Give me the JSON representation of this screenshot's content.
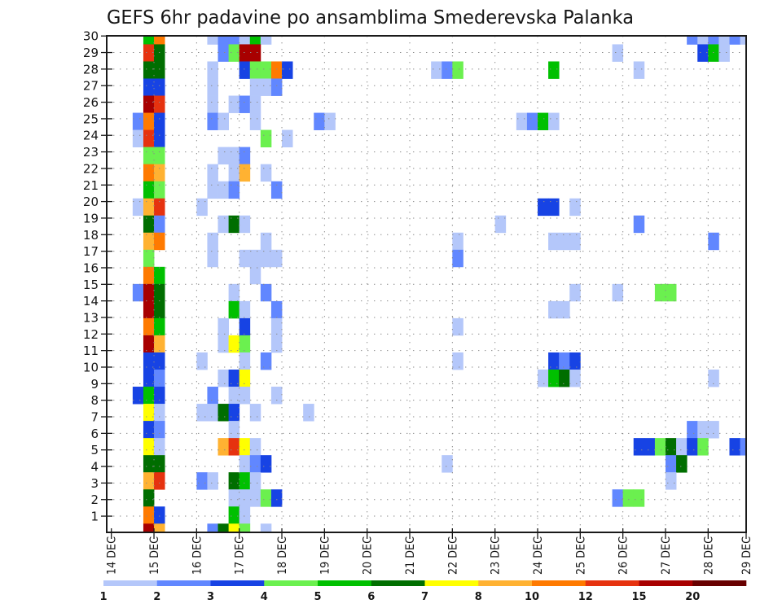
{
  "chart_data": {
    "type": "heatmap",
    "title": "GEFS 6hr padavine po ansamblima Smederevska Palanka",
    "xlabel": "",
    "ylabel": "",
    "ylim": [
      0,
      30
    ],
    "step_hours": 6,
    "x_ticks": [
      "14 DEC",
      "15 DEC",
      "16 DEC",
      "17 DEC",
      "18 DEC",
      "19 DEC",
      "20 DEC",
      "21 DEC",
      "22 DEC",
      "23 DEC",
      "24 DEC",
      "25 DEC",
      "26 DEC",
      "27 DEC",
      "28 DEC",
      "29 DEC"
    ],
    "y_ticks": [
      "1",
      "2",
      "3",
      "4",
      "5",
      "6",
      "7",
      "8",
      "9",
      "10",
      "11",
      "12",
      "13",
      "14",
      "15",
      "16",
      "17",
      "18",
      "19",
      "20",
      "21",
      "22",
      "23",
      "24",
      "25",
      "26",
      "27",
      "28",
      "29",
      "30"
    ],
    "grid": true,
    "legend": "bottom",
    "levels": [
      1,
      2,
      3,
      4,
      5,
      6,
      7,
      8,
      10,
      12,
      15,
      20
    ],
    "level_labels": [
      "1",
      "2",
      "3",
      "4",
      "5",
      "6",
      "7",
      "8",
      "10",
      "12",
      "15",
      "20"
    ],
    "colors": [
      "#b4c7fa",
      "#6187ff",
      "#1743e4",
      "#6bf04f",
      "#00c000",
      "#006e00",
      "#ffff00",
      "#ffb232",
      "#ff7a00",
      "#e6320f",
      "#a80000",
      "#680000"
    ],
    "rows": [
      {
        "member": 30,
        "cells": [
          [
            3,
            5
          ],
          [
            4,
            10
          ],
          [
            9,
            1
          ],
          [
            10,
            2
          ],
          [
            11,
            2
          ],
          [
            12,
            1
          ],
          [
            13,
            5
          ],
          [
            14,
            1
          ],
          [
            54,
            2
          ],
          [
            55,
            1
          ],
          [
            56,
            2
          ],
          [
            57,
            1
          ],
          [
            58,
            2
          ],
          [
            59,
            1
          ]
        ]
      },
      {
        "member": 29,
        "cells": [
          [
            3,
            12
          ],
          [
            4,
            6
          ],
          [
            10,
            2
          ],
          [
            11,
            4
          ],
          [
            12,
            15
          ],
          [
            13,
            15
          ],
          [
            47,
            1
          ],
          [
            55,
            3
          ],
          [
            56,
            5
          ],
          [
            57,
            1
          ]
        ]
      },
      {
        "member": 28,
        "cells": [
          [
            3,
            6
          ],
          [
            4,
            6
          ],
          [
            9,
            1
          ],
          [
            12,
            3
          ],
          [
            13,
            4
          ],
          [
            14,
            4
          ],
          [
            15,
            10
          ],
          [
            16,
            3
          ],
          [
            30,
            1
          ],
          [
            31,
            2
          ],
          [
            32,
            4
          ],
          [
            41,
            5
          ],
          [
            49,
            1
          ]
        ]
      },
      {
        "member": 27,
        "cells": [
          [
            3,
            3
          ],
          [
            4,
            3
          ],
          [
            9,
            1
          ],
          [
            13,
            1
          ],
          [
            14,
            1
          ],
          [
            15,
            2
          ]
        ]
      },
      {
        "member": 26,
        "cells": [
          [
            3,
            15
          ],
          [
            4,
            12
          ],
          [
            9,
            1
          ],
          [
            11,
            1
          ],
          [
            12,
            2
          ],
          [
            13,
            1
          ]
        ]
      },
      {
        "member": 25,
        "cells": [
          [
            2,
            2
          ],
          [
            3,
            10
          ],
          [
            4,
            3
          ],
          [
            9,
            2
          ],
          [
            10,
            1
          ],
          [
            13,
            1
          ],
          [
            19,
            2
          ],
          [
            20,
            1
          ],
          [
            38,
            1
          ],
          [
            39,
            2
          ],
          [
            40,
            5
          ],
          [
            41,
            1
          ]
        ]
      },
      {
        "member": 24,
        "cells": [
          [
            2,
            1
          ],
          [
            3,
            12
          ],
          [
            4,
            3
          ],
          [
            14,
            4
          ],
          [
            16,
            1
          ]
        ]
      },
      {
        "member": 23,
        "cells": [
          [
            3,
            4
          ],
          [
            4,
            4
          ],
          [
            10,
            1
          ],
          [
            11,
            1
          ],
          [
            12,
            2
          ]
        ]
      },
      {
        "member": 22,
        "cells": [
          [
            3,
            10
          ],
          [
            4,
            8
          ],
          [
            9,
            1
          ],
          [
            11,
            1
          ],
          [
            12,
            8
          ],
          [
            14,
            1
          ]
        ]
      },
      {
        "member": 21,
        "cells": [
          [
            3,
            5
          ],
          [
            4,
            4
          ],
          [
            9,
            1
          ],
          [
            10,
            1
          ],
          [
            11,
            2
          ],
          [
            15,
            2
          ]
        ]
      },
      {
        "member": 20,
        "cells": [
          [
            2,
            1
          ],
          [
            3,
            8
          ],
          [
            4,
            12
          ],
          [
            8,
            1
          ],
          [
            40,
            3
          ],
          [
            41,
            3
          ],
          [
            43,
            1
          ]
        ]
      },
      {
        "member": 19,
        "cells": [
          [
            3,
            6
          ],
          [
            4,
            2
          ],
          [
            10,
            1
          ],
          [
            11,
            6
          ],
          [
            12,
            1
          ],
          [
            36,
            1
          ],
          [
            49,
            2
          ]
        ]
      },
      {
        "member": 18,
        "cells": [
          [
            3,
            8
          ],
          [
            4,
            10
          ],
          [
            9,
            1
          ],
          [
            14,
            1
          ],
          [
            32,
            1
          ],
          [
            41,
            1
          ],
          [
            42,
            1
          ],
          [
            43,
            1
          ],
          [
            56,
            2
          ]
        ]
      },
      {
        "member": 17,
        "cells": [
          [
            3,
            4
          ],
          [
            9,
            1
          ],
          [
            12,
            1
          ],
          [
            13,
            1
          ],
          [
            14,
            1
          ],
          [
            15,
            1
          ],
          [
            32,
            2
          ]
        ]
      },
      {
        "member": 16,
        "cells": [
          [
            3,
            10
          ],
          [
            4,
            5
          ],
          [
            13,
            1
          ]
        ]
      },
      {
        "member": 15,
        "cells": [
          [
            2,
            2
          ],
          [
            3,
            15
          ],
          [
            4,
            6
          ],
          [
            11,
            1
          ],
          [
            14,
            2
          ],
          [
            43,
            1
          ],
          [
            47,
            1
          ],
          [
            51,
            4
          ],
          [
            52,
            4
          ]
        ]
      },
      {
        "member": 14,
        "cells": [
          [
            3,
            15
          ],
          [
            4,
            6
          ],
          [
            11,
            5
          ],
          [
            12,
            1
          ],
          [
            15,
            2
          ],
          [
            41,
            1
          ],
          [
            42,
            1
          ]
        ]
      },
      {
        "member": 13,
        "cells": [
          [
            3,
            10
          ],
          [
            4,
            5
          ],
          [
            10,
            1
          ],
          [
            12,
            3
          ],
          [
            15,
            1
          ],
          [
            32,
            1
          ]
        ]
      },
      {
        "member": 12,
        "cells": [
          [
            3,
            15
          ],
          [
            4,
            8
          ],
          [
            10,
            1
          ],
          [
            11,
            7
          ],
          [
            12,
            4
          ],
          [
            15,
            1
          ]
        ]
      },
      {
        "member": 11,
        "cells": [
          [
            3,
            3
          ],
          [
            4,
            3
          ],
          [
            8,
            1
          ],
          [
            12,
            1
          ],
          [
            14,
            2
          ],
          [
            32,
            1
          ],
          [
            41,
            3
          ],
          [
            42,
            2
          ],
          [
            43,
            3
          ]
        ]
      },
      {
        "member": 10,
        "cells": [
          [
            3,
            3
          ],
          [
            4,
            2
          ],
          [
            10,
            1
          ],
          [
            11,
            3
          ],
          [
            12,
            7
          ],
          [
            40,
            1
          ],
          [
            41,
            5
          ],
          [
            42,
            6
          ],
          [
            43,
            1
          ],
          [
            56,
            1
          ]
        ]
      },
      {
        "member": 9,
        "cells": [
          [
            2,
            3
          ],
          [
            3,
            5
          ],
          [
            4,
            3
          ],
          [
            9,
            2
          ],
          [
            11,
            1
          ],
          [
            12,
            1
          ],
          [
            15,
            1
          ]
        ]
      },
      {
        "member": 8,
        "cells": [
          [
            3,
            7
          ],
          [
            4,
            1
          ],
          [
            8,
            1
          ],
          [
            9,
            1
          ],
          [
            10,
            6
          ],
          [
            11,
            3
          ],
          [
            13,
            1
          ],
          [
            18,
            1
          ]
        ]
      },
      {
        "member": 7,
        "cells": [
          [
            3,
            3
          ],
          [
            4,
            2
          ],
          [
            11,
            1
          ],
          [
            54,
            2
          ],
          [
            55,
            1
          ],
          [
            56,
            1
          ]
        ]
      },
      {
        "member": 6,
        "cells": [
          [
            3,
            7
          ],
          [
            4,
            1
          ],
          [
            10,
            8
          ],
          [
            11,
            12
          ],
          [
            12,
            7
          ],
          [
            13,
            1
          ],
          [
            49,
            3
          ],
          [
            50,
            3
          ],
          [
            51,
            4
          ],
          [
            52,
            6
          ],
          [
            53,
            1
          ],
          [
            54,
            3
          ],
          [
            55,
            4
          ],
          [
            58,
            3
          ],
          [
            59,
            2
          ]
        ]
      },
      {
        "member": 5,
        "cells": [
          [
            3,
            6
          ],
          [
            4,
            6
          ],
          [
            12,
            1
          ],
          [
            13,
            2
          ],
          [
            14,
            3
          ],
          [
            31,
            1
          ],
          [
            52,
            2
          ],
          [
            53,
            6
          ]
        ]
      },
      {
        "member": 4,
        "cells": [
          [
            3,
            8
          ],
          [
            4,
            12
          ],
          [
            8,
            2
          ],
          [
            9,
            1
          ],
          [
            11,
            6
          ],
          [
            12,
            5
          ],
          [
            13,
            1
          ],
          [
            52,
            1
          ]
        ]
      },
      {
        "member": 3,
        "cells": [
          [
            3,
            6
          ],
          [
            11,
            1
          ],
          [
            12,
            1
          ],
          [
            13,
            1
          ],
          [
            14,
            4
          ],
          [
            15,
            3
          ],
          [
            47,
            2
          ],
          [
            48,
            4
          ],
          [
            49,
            4
          ]
        ]
      },
      {
        "member": 2,
        "cells": [
          [
            3,
            10
          ],
          [
            4,
            3
          ],
          [
            11,
            5
          ],
          [
            12,
            1
          ]
        ]
      },
      {
        "member": 1,
        "cells": [
          [
            3,
            15
          ],
          [
            4,
            8
          ],
          [
            9,
            2
          ],
          [
            10,
            6
          ],
          [
            11,
            7
          ],
          [
            12,
            4
          ],
          [
            14,
            1
          ]
        ]
      }
    ]
  }
}
